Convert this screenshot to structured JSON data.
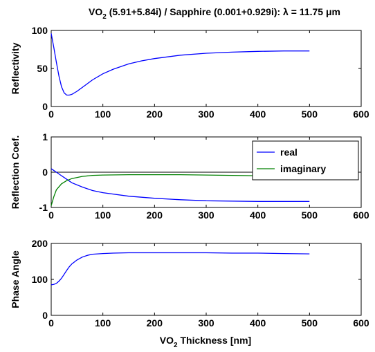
{
  "figure": {
    "title": {
      "part1": "VO",
      "sub": "2",
      "part2": " (5.91+5.84i) / Sapphire (0.001+0.929i): λ = 11.75 μm"
    },
    "xlabel": {
      "part1": "VO",
      "sub": "2",
      "part2": " Thickness [nm]"
    }
  },
  "chart_data": [
    {
      "type": "line",
      "ylabel": "Reflectivity",
      "xlim": [
        0,
        600
      ],
      "ylim": [
        0,
        100
      ],
      "xticks": [
        0,
        100,
        200,
        300,
        400,
        500,
        600
      ],
      "yticks": [
        0,
        50,
        100
      ],
      "grid": false,
      "series": [
        {
          "color": "#0000ff",
          "x": [
            0,
            5,
            10,
            15,
            20,
            25,
            30,
            35,
            40,
            50,
            60,
            70,
            80,
            100,
            120,
            150,
            175,
            200,
            250,
            300,
            350,
            400,
            450,
            500
          ],
          "y": [
            96,
            78,
            58,
            40,
            26,
            18,
            15,
            15,
            16,
            20,
            25,
            30,
            35,
            43,
            49,
            56,
            60,
            63,
            67.5,
            70,
            71.5,
            72.5,
            73,
            73
          ]
        }
      ]
    },
    {
      "type": "line",
      "ylabel": "Reflection Coef.",
      "xlim": [
        0,
        600
      ],
      "ylim": [
        -1,
        1
      ],
      "xticks": [
        0,
        100,
        200,
        300,
        400,
        500,
        600
      ],
      "yticks": [
        -1,
        0,
        1
      ],
      "grid": false,
      "zero_line": true,
      "legend_position": "top-right",
      "series": [
        {
          "name": "real",
          "color": "#0000ff",
          "x": [
            0,
            5,
            10,
            20,
            30,
            40,
            60,
            80,
            100,
            150,
            200,
            250,
            300,
            350,
            400,
            450,
            500
          ],
          "y": [
            0.1,
            0.05,
            0,
            -0.1,
            -0.2,
            -0.3,
            -0.42,
            -0.52,
            -0.58,
            -0.68,
            -0.74,
            -0.78,
            -0.81,
            -0.82,
            -0.83,
            -0.83,
            -0.83
          ]
        },
        {
          "name": "imaginary",
          "color": "#008000",
          "x": [
            0,
            5,
            10,
            20,
            30,
            40,
            60,
            80,
            100,
            150,
            200,
            250,
            300,
            350,
            400,
            450,
            500
          ],
          "y": [
            -0.95,
            -0.7,
            -0.5,
            -0.33,
            -0.24,
            -0.18,
            -0.12,
            -0.09,
            -0.08,
            -0.07,
            -0.07,
            -0.07,
            -0.08,
            -0.09,
            -0.1,
            -0.1,
            -0.1
          ]
        }
      ]
    },
    {
      "type": "line",
      "ylabel": "Phase Angle",
      "xlabel": "VO2 Thickness [nm]",
      "xlim": [
        0,
        600
      ],
      "ylim": [
        0,
        200
      ],
      "xticks": [
        0,
        100,
        200,
        300,
        400,
        500,
        600
      ],
      "yticks": [
        0,
        100,
        200
      ],
      "grid": false,
      "series": [
        {
          "color": "#0000ff",
          "x": [
            0,
            5,
            10,
            15,
            20,
            25,
            30,
            35,
            40,
            50,
            60,
            70,
            80,
            90,
            100,
            120,
            150,
            200,
            250,
            300,
            350,
            400,
            450,
            500
          ],
          "y": [
            85,
            86,
            89,
            95,
            103,
            114,
            125,
            135,
            143,
            154,
            162,
            167,
            170,
            171,
            172,
            173,
            174,
            174,
            174,
            174,
            173,
            173,
            172,
            171
          ]
        }
      ]
    }
  ]
}
